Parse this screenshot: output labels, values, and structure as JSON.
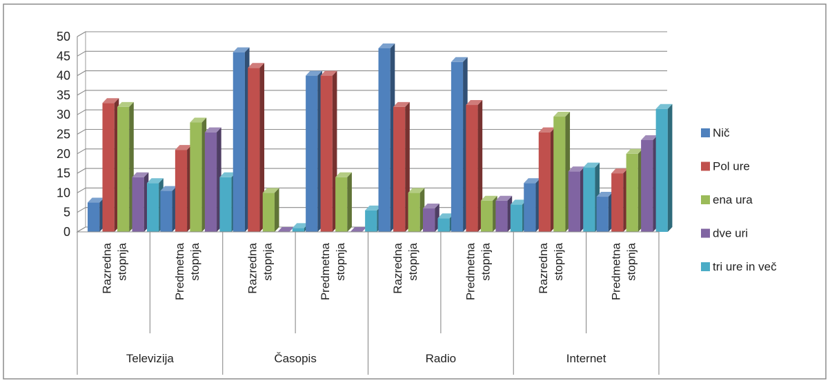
{
  "chart_data": {
    "type": "bar",
    "style": "3d-clustered-column",
    "ylim": [
      0,
      50
    ],
    "yticks": [
      0,
      5,
      10,
      15,
      20,
      25,
      30,
      35,
      40,
      45,
      50
    ],
    "grid": true,
    "legend_position": "right",
    "groups": [
      "Televizija",
      "Časopis",
      "Radio",
      "Internet"
    ],
    "subcategory_lines": [
      [
        "Razredna",
        "stopnja"
      ],
      [
        "Predmetna",
        "stopnja"
      ]
    ],
    "categories": [
      {
        "group": "Televizija",
        "label": "Razredna stopnja"
      },
      {
        "group": "Televizija",
        "label": "Predmetna stopnja"
      },
      {
        "group": "Časopis",
        "label": "Razredna stopnja"
      },
      {
        "group": "Časopis",
        "label": "Predmetna stopnja"
      },
      {
        "group": "Radio",
        "label": "Razredna stopnja"
      },
      {
        "group": "Radio",
        "label": "Predmetna stopnja"
      },
      {
        "group": "Internet",
        "label": "Razredna stopnja"
      },
      {
        "group": "Internet",
        "label": "Predmetna stopnja"
      }
    ],
    "series": [
      {
        "name": "Nič",
        "color": "#4F81BD",
        "values": [
          7.5,
          10.5,
          46,
          40,
          47,
          43.5,
          12.5,
          9
        ]
      },
      {
        "name": "Pol ure",
        "color": "#C0504D",
        "values": [
          33,
          21,
          42,
          40,
          32,
          32.5,
          25.5,
          15
        ]
      },
      {
        "name": "ena ura",
        "color": "#9BBB59",
        "values": [
          32,
          28,
          10,
          14,
          10,
          8,
          29.5,
          20
        ]
      },
      {
        "name": "dve uri",
        "color": "#8064A2",
        "values": [
          14,
          25.5,
          0,
          0,
          6,
          8,
          15.5,
          23.5
        ]
      },
      {
        "name": "tri ure in več",
        "color": "#4BACC6",
        "values": [
          12.5,
          14,
          1,
          5.5,
          3.5,
          7,
          16.5,
          31.5
        ]
      }
    ]
  }
}
